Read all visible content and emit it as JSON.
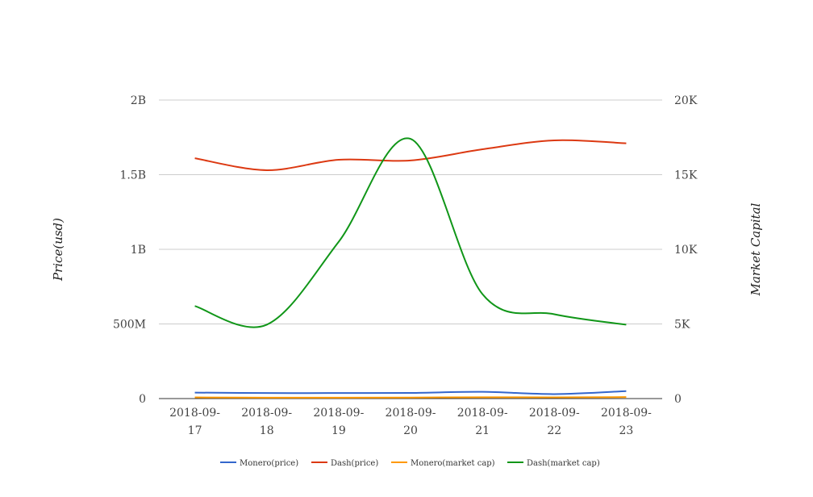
{
  "chart_data": {
    "type": "line",
    "title": "",
    "categories": [
      [
        "2018-09-",
        "17"
      ],
      [
        "2018-09-",
        "18"
      ],
      [
        "2018-09-",
        "19"
      ],
      [
        "2018-09-",
        "20"
      ],
      [
        "2018-09-",
        "21"
      ],
      [
        "2018-09-",
        "22"
      ],
      [
        "2018-09-",
        "23"
      ]
    ],
    "ylabel": "Price(usd)",
    "y2label": "Market Capital",
    "ylim": [
      0,
      2000000000
    ],
    "y2lim": [
      0,
      20000
    ],
    "yticks": [
      "0",
      "500M",
      "1B",
      "1.5B",
      "2B"
    ],
    "y2ticks": [
      "0",
      "5K",
      "10K",
      "15K",
      "20K"
    ],
    "grid": true,
    "legend_position": "bottom",
    "series": [
      {
        "name": "Monero(price)",
        "axis": "right",
        "color": "#3366cc",
        "values": [
          400,
          370,
          370,
          380,
          450,
          300,
          500
        ]
      },
      {
        "name": "Dash(price)",
        "axis": "right",
        "color": "#dc3912",
        "values": [
          16100,
          15300,
          16000,
          15950,
          16700,
          17300,
          17100
        ]
      },
      {
        "name": "Monero(market cap)",
        "axis": "left",
        "color": "#ff9900",
        "values": [
          8000000,
          6000000,
          6000000,
          7000000,
          9000000,
          8000000,
          10000000
        ]
      },
      {
        "name": "Dash(market cap)",
        "axis": "left",
        "color": "#109618",
        "values": [
          620000000,
          495000000,
          1050000000,
          1740000000,
          700000000,
          565000000,
          495000000
        ]
      }
    ]
  }
}
